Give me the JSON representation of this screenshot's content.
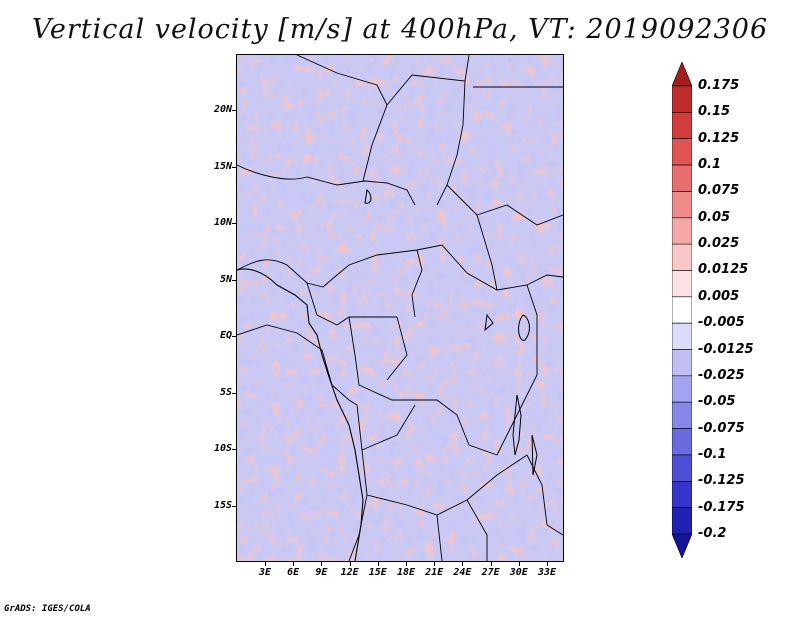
{
  "title": "Vertical velocity [m/s] at 400hPa, VT: 2019092306",
  "footer": "GrADS: IGES/COLA",
  "latitude_labels": [
    "20N",
    "15N",
    "10N",
    "5N",
    "EQ",
    "5S",
    "10S",
    "15S"
  ],
  "longitude_labels": [
    "3E",
    "6E",
    "9E",
    "12E",
    "15E",
    "18E",
    "21E",
    "24E",
    "27E",
    "30E",
    "33E"
  ],
  "colorbar": {
    "labels": [
      "0.175",
      "0.15",
      "0.125",
      "0.1",
      "0.075",
      "0.05",
      "0.025",
      "0.0125",
      "0.005",
      "-0.005",
      "-0.0125",
      "-0.025",
      "-0.05",
      "-0.075",
      "-0.1",
      "-0.125",
      "-0.175",
      "-0.2"
    ],
    "colors": [
      "#a51c1c",
      "#bd2b2b",
      "#d13d3d",
      "#e05454",
      "#e86f6f",
      "#ef8a8a",
      "#f4a8a8",
      "#f8c7c7",
      "#fbe2e2",
      "#ffffff",
      "#dcdcfa",
      "#c0c0f5",
      "#a3a3ef",
      "#8787e8",
      "#6b6be0",
      "#4f4fd6",
      "#3535c8",
      "#2020b2",
      "#14149a"
    ]
  }
}
